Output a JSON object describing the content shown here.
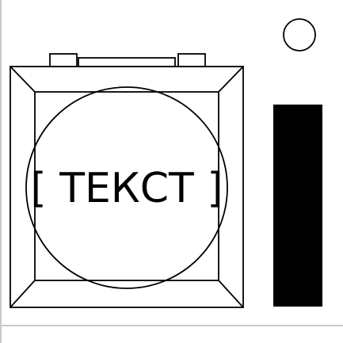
{
  "label": {
    "text": "[ ТЕКСТ ]"
  },
  "colors": {
    "background": "#ffffff",
    "stroke": "#000000",
    "bar_fill": "#000000",
    "frame_line": "#c8c8c8"
  },
  "elements": {
    "indicator_icon": "circle-indicator-icon",
    "side_bar": "vertical-black-bar"
  }
}
